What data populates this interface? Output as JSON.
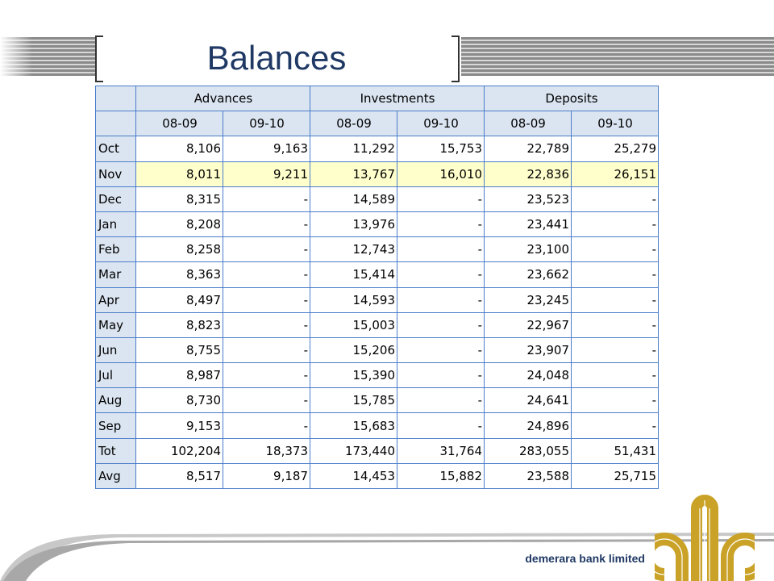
{
  "slide": {
    "title": "Balances",
    "footer_name": "demerara bank limited"
  },
  "table": {
    "groups": [
      "Advances",
      "Investments",
      "Deposits"
    ],
    "periods": [
      "08-09",
      "09-10",
      "08-09",
      "09-10",
      "08-09",
      "09-10"
    ],
    "rows": [
      {
        "label": "Oct",
        "values": [
          "8,106",
          "9,163",
          "11,292",
          "15,753",
          "22,789",
          "25,279"
        ]
      },
      {
        "label": "Nov",
        "values": [
          "8,011",
          "9,211",
          "13,767",
          "16,010",
          "22,836",
          "26,151"
        ]
      },
      {
        "label": "Dec",
        "values": [
          "8,315",
          "-",
          "14,589",
          "-",
          "23,523",
          "-"
        ]
      },
      {
        "label": "Jan",
        "values": [
          "8,208",
          "-",
          "13,976",
          "-",
          "23,441",
          "-"
        ]
      },
      {
        "label": "Feb",
        "values": [
          "8,258",
          "-",
          "12,743",
          "-",
          "23,100",
          "-"
        ]
      },
      {
        "label": "Mar",
        "values": [
          "8,363",
          "-",
          "15,414",
          "-",
          "23,662",
          "-"
        ]
      },
      {
        "label": "Apr",
        "values": [
          "8,497",
          "-",
          "14,593",
          "-",
          "23,245",
          "-"
        ]
      },
      {
        "label": "May",
        "values": [
          "8,823",
          "-",
          "15,003",
          "-",
          "22,967",
          "-"
        ]
      },
      {
        "label": "Jun",
        "values": [
          "8,755",
          "-",
          "15,206",
          "-",
          "23,907",
          "-"
        ]
      },
      {
        "label": "Jul",
        "values": [
          "8,987",
          "-",
          "15,390",
          "-",
          "24,048",
          "-"
        ]
      },
      {
        "label": "Aug",
        "values": [
          "8,730",
          "-",
          "15,785",
          "-",
          "24,641",
          "-"
        ]
      },
      {
        "label": "Sep",
        "values": [
          "9,153",
          "-",
          "15,683",
          "-",
          "24,896",
          "-"
        ]
      },
      {
        "label": "Tot",
        "values": [
          "102,204",
          "18,373",
          "173,440",
          "31,764",
          "283,055",
          "51,431"
        ]
      },
      {
        "label": "Avg",
        "values": [
          "8,517",
          "9,187",
          "14,453",
          "15,882",
          "23,588",
          "25,715"
        ]
      }
    ]
  },
  "colors": {
    "title": "#1f3864",
    "header_fill": "#dbe5f1",
    "grid": "#4a7cc9",
    "highlight_row": "#ffffcc",
    "logo_gold": "#c9a227"
  },
  "icons": {
    "logo": "demerara-bank-logo"
  }
}
